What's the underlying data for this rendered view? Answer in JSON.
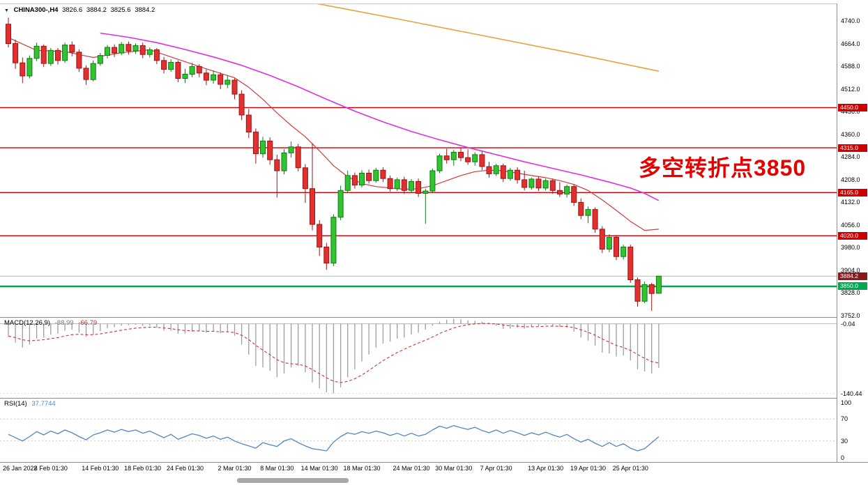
{
  "colors": {
    "up_fill": "#31c431",
    "up_stroke": "#127a12",
    "down_fill": "#e03030",
    "down_stroke": "#a01212",
    "resistance_line": "#cc0000",
    "support_line": "#00a651",
    "current_price_line": "#b8b8b8",
    "ma_red": "#cf3a3a",
    "ma_magenta": "#e12ee1",
    "ma_orange": "#e8a23c",
    "macd_hist": "#9e9e9e",
    "macd_signal": "#cc3333",
    "rsi_line": "#4f87c5",
    "annotation": "#e60000",
    "badge_resistance_bg": "#cc0000",
    "badge_support_bg": "#00a651",
    "badge_current_bg": "#8a1a1a"
  },
  "title": {
    "collapse_icon": "▼",
    "symbol": "CHINA300-,H4",
    "open": "3826.6",
    "high": "3884.2",
    "low": "3825.6",
    "close": "3884.2"
  },
  "annotation": {
    "text": "多空转折点3850"
  },
  "macd_label": {
    "name": "MACD(12,26,9)",
    "hist_value": "-88.99",
    "signal_value": "-66.79"
  },
  "rsi_label": {
    "name": "RSI(14)",
    "value": "37.7744"
  },
  "chart_data": {
    "type": "candlestick",
    "symbol": "CHINA300-",
    "timeframe": "H4",
    "price_panel": {
      "ylim": [
        3747,
        4797
      ],
      "axis_ticks": [
        4740,
        4664,
        4588,
        4512,
        4436,
        4360,
        4284,
        4208,
        4132,
        4056,
        3980,
        3904,
        3828,
        3752
      ],
      "hlines": [
        {
          "value": 4450,
          "label": "4450.0",
          "type": "resistance"
        },
        {
          "value": 4315,
          "label": "4315.0",
          "type": "resistance"
        },
        {
          "value": 4165,
          "label": "4165.0",
          "type": "resistance"
        },
        {
          "value": 4020,
          "label": "4020.0",
          "type": "resistance"
        },
        {
          "value": 3850,
          "label": "3850.0",
          "type": "support"
        }
      ],
      "current_price": {
        "value": 3884.2,
        "label": "3884.2"
      },
      "candles_ohlc": [
        [
          4730,
          4752,
          4652,
          4665
        ],
        [
          4665,
          4678,
          4580,
          4600
        ],
        [
          4600,
          4618,
          4532,
          4556
        ],
        [
          4556,
          4625,
          4548,
          4615
        ],
        [
          4615,
          4668,
          4606,
          4656
        ],
        [
          4656,
          4662,
          4586,
          4598
        ],
        [
          4598,
          4650,
          4590,
          4642
        ],
        [
          4642,
          4650,
          4594,
          4608
        ],
        [
          4608,
          4668,
          4600,
          4660
        ],
        [
          4660,
          4672,
          4622,
          4636
        ],
        [
          4636,
          4645,
          4570,
          4582
        ],
        [
          4582,
          4592,
          4526,
          4544
        ],
        [
          4544,
          4608,
          4538,
          4598
        ],
        [
          4598,
          4634,
          4590,
          4625
        ],
        [
          4625,
          4660,
          4615,
          4652
        ],
        [
          4652,
          4662,
          4620,
          4633
        ],
        [
          4633,
          4670,
          4626,
          4662
        ],
        [
          4662,
          4672,
          4628,
          4640
        ],
        [
          4640,
          4665,
          4630,
          4658
        ],
        [
          4658,
          4668,
          4616,
          4628
        ],
        [
          4628,
          4652,
          4618,
          4644
        ],
        [
          4644,
          4650,
          4596,
          4608
        ],
        [
          4608,
          4620,
          4565,
          4578
        ],
        [
          4578,
          4612,
          4570,
          4602
        ],
        [
          4602,
          4608,
          4535,
          4548
        ],
        [
          4548,
          4580,
          4532,
          4562
        ],
        [
          4562,
          4600,
          4552,
          4588
        ],
        [
          4588,
          4596,
          4552,
          4566
        ],
        [
          4566,
          4578,
          4525,
          4542
        ],
        [
          4542,
          4575,
          4530,
          4560
        ],
        [
          4560,
          4568,
          4512,
          4528
        ],
        [
          4528,
          4558,
          4515,
          4542
        ],
        [
          4542,
          4548,
          4478,
          4495
        ],
        [
          4495,
          4508,
          4408,
          4425
        ],
        [
          4425,
          4445,
          4348,
          4368
        ],
        [
          4368,
          4380,
          4262,
          4295
        ],
        [
          4295,
          4352,
          4282,
          4338
        ],
        [
          4338,
          4350,
          4258,
          4275
        ],
        [
          4275,
          4292,
          4148,
          4238
        ],
        [
          4238,
          4310,
          4226,
          4298
        ],
        [
          4298,
          4336,
          4282,
          4318
        ],
        [
          4318,
          4328,
          4236,
          4248
        ],
        [
          4248,
          4260,
          4130,
          4178
        ],
        [
          4178,
          4330,
          4038,
          4058
        ],
        [
          4058,
          4072,
          3952,
          3982
        ],
        [
          3982,
          3996,
          3906,
          3928
        ],
        [
          3928,
          4092,
          3918,
          4082
        ],
        [
          4082,
          4188,
          4072,
          4172
        ],
        [
          4172,
          4238,
          4162,
          4222
        ],
        [
          4222,
          4232,
          4178,
          4190
        ],
        [
          4190,
          4240,
          4182,
          4230
        ],
        [
          4230,
          4242,
          4195,
          4205
        ],
        [
          4205,
          4248,
          4198,
          4240
        ],
        [
          4240,
          4250,
          4200,
          4212
        ],
        [
          4212,
          4222,
          4168,
          4178
        ],
        [
          4178,
          4215,
          4170,
          4208
        ],
        [
          4208,
          4218,
          4160,
          4172
        ],
        [
          4172,
          4210,
          4165,
          4202
        ],
        [
          4202,
          4212,
          4150,
          4162
        ],
        [
          4162,
          4178,
          4060,
          4170
        ],
        [
          4170,
          4245,
          4162,
          4238
        ],
        [
          4238,
          4295,
          4230,
          4288
        ],
        [
          4288,
          4312,
          4262,
          4275
        ],
        [
          4275,
          4308,
          4255,
          4300
        ],
        [
          4300,
          4316,
          4270,
          4282
        ],
        [
          4282,
          4310,
          4258,
          4268
        ],
        [
          4268,
          4300,
          4255,
          4292
        ],
        [
          4292,
          4302,
          4240,
          4252
        ],
        [
          4252,
          4268,
          4215,
          4228
        ],
        [
          4228,
          4262,
          4220,
          4255
        ],
        [
          4255,
          4262,
          4200,
          4212
        ],
        [
          4212,
          4248,
          4205,
          4240
        ],
        [
          4240,
          4250,
          4195,
          4208
        ],
        [
          4208,
          4238,
          4172,
          4182
        ],
        [
          4182,
          4215,
          4175,
          4210
        ],
        [
          4210,
          4218,
          4170,
          4180
        ],
        [
          4180,
          4212,
          4172,
          4205
        ],
        [
          4205,
          4212,
          4160,
          4172
        ],
        [
          4172,
          4200,
          4150,
          4160
        ],
        [
          4160,
          4192,
          4148,
          4185
        ],
        [
          4185,
          4192,
          4120,
          4132
        ],
        [
          4132,
          4145,
          4075,
          4088
        ],
        [
          4088,
          4118,
          4062,
          4108
        ],
        [
          4108,
          4115,
          4030,
          4042
        ],
        [
          4042,
          4052,
          3962,
          3975
        ],
        [
          3975,
          4025,
          3965,
          4015
        ],
        [
          4015,
          4022,
          3938,
          3950
        ],
        [
          3950,
          3990,
          3940,
          3982
        ],
        [
          3982,
          3990,
          3862,
          3872
        ],
        [
          3872,
          3880,
          3782,
          3800
        ],
        [
          3800,
          3866,
          3794,
          3856
        ],
        [
          3856,
          3862,
          3768,
          3826
        ],
        [
          3826.6,
          3884.2,
          3825.6,
          3884.2
        ]
      ],
      "ma_red_anchors": [
        [
          0,
          4685
        ],
        [
          4,
          4642
        ],
        [
          8,
          4638
        ],
        [
          12,
          4618
        ],
        [
          16,
          4634
        ],
        [
          20,
          4644
        ],
        [
          24,
          4612
        ],
        [
          28,
          4580
        ],
        [
          32,
          4550
        ],
        [
          34,
          4518
        ],
        [
          36,
          4478
        ],
        [
          38,
          4432
        ],
        [
          40,
          4390
        ],
        [
          42,
          4352
        ],
        [
          44,
          4305
        ],
        [
          46,
          4255
        ],
        [
          48,
          4218
        ],
        [
          50,
          4195
        ],
        [
          52,
          4185
        ],
        [
          54,
          4180
        ],
        [
          56,
          4176
        ],
        [
          58,
          4178
        ],
        [
          60,
          4188
        ],
        [
          62,
          4205
        ],
        [
          64,
          4222
        ],
        [
          66,
          4235
        ],
        [
          68,
          4240
        ],
        [
          70,
          4238
        ],
        [
          72,
          4230
        ],
        [
          74,
          4222
        ],
        [
          76,
          4215
        ],
        [
          78,
          4205
        ],
        [
          80,
          4192
        ],
        [
          82,
          4172
        ],
        [
          84,
          4140
        ],
        [
          86,
          4105
        ],
        [
          88,
          4068
        ],
        [
          90,
          4038
        ],
        [
          92,
          4042
        ]
      ],
      "ma_magenta_anchors": [
        [
          13,
          4700
        ],
        [
          17,
          4686
        ],
        [
          21,
          4668
        ],
        [
          25,
          4645
        ],
        [
          29,
          4620
        ],
        [
          33,
          4592
        ],
        [
          37,
          4558
        ],
        [
          41,
          4520
        ],
        [
          45,
          4478
        ],
        [
          49,
          4438
        ],
        [
          53,
          4402
        ],
        [
          57,
          4370
        ],
        [
          61,
          4342
        ],
        [
          65,
          4316
        ],
        [
          69,
          4292
        ],
        [
          73,
          4268
        ],
        [
          77,
          4246
        ],
        [
          81,
          4224
        ],
        [
          85,
          4200
        ],
        [
          88,
          4180
        ],
        [
          90,
          4162
        ],
        [
          92,
          4138
        ]
      ],
      "ma_orange_anchors": [
        [
          43,
          4802
        ],
        [
          55,
          4748
        ],
        [
          67,
          4692
        ],
        [
          79,
          4636
        ],
        [
          92,
          4572
        ]
      ]
    },
    "macd_panel": {
      "title": "MACD(12,26,9)",
      "current_hist": -88.99,
      "current_signal": -66.79,
      "zero_label": "-0.04",
      "min_label": "-140.44",
      "min_label_value": -140.44,
      "values": [
        -25,
        -38,
        -48,
        -42,
        -30,
        -28,
        -22,
        -20,
        -14,
        -12,
        -18,
        -26,
        -22,
        -15,
        -9,
        -7,
        -4,
        -3,
        -2,
        -4,
        -4,
        -8,
        -14,
        -14,
        -20,
        -20,
        -16,
        -15,
        -18,
        -16,
        -19,
        -16,
        -24,
        -42,
        -62,
        -85,
        -88,
        -95,
        -108,
        -100,
        -88,
        -85,
        -98,
        -118,
        -130,
        -138,
        -140.44,
        -128,
        -108,
        -92,
        -76,
        -62,
        -48,
        -40,
        -36,
        -30,
        -28,
        -22,
        -18,
        -12,
        -4,
        4,
        8,
        10,
        9,
        7,
        6,
        4,
        0,
        -4,
        -10,
        -10,
        -8,
        -10,
        -6,
        -5,
        -2,
        -4,
        -6,
        -8,
        -16,
        -28,
        -34,
        -44,
        -58,
        -60,
        -66,
        -64,
        -74,
        -92,
        -96,
        -100,
        -88.99
      ]
    },
    "rsi_panel": {
      "title": "RSI(14)",
      "current": 37.7744,
      "levels": [
        100,
        70,
        30,
        0
      ],
      "values": [
        42,
        36,
        30,
        38,
        47,
        41,
        48,
        43,
        50,
        45,
        38,
        32,
        41,
        45,
        50,
        46,
        51,
        47,
        50,
        44,
        48,
        42,
        36,
        42,
        33,
        38,
        43,
        40,
        35,
        39,
        33,
        37,
        30,
        25,
        21,
        17,
        27,
        23,
        20,
        30,
        34,
        27,
        21,
        16,
        14,
        12,
        28,
        38,
        45,
        42,
        47,
        44,
        48,
        45,
        40,
        44,
        39,
        44,
        39,
        42,
        50,
        57,
        53,
        58,
        54,
        51,
        55,
        49,
        45,
        50,
        44,
        49,
        45,
        40,
        45,
        41,
        46,
        41,
        37,
        42,
        34,
        28,
        33,
        26,
        20,
        27,
        20,
        25,
        17,
        12,
        16,
        27,
        37.77
      ]
    },
    "x_axis": {
      "labels": [
        {
          "i": 0,
          "text": "26 Jan 2022"
        },
        {
          "i": 6,
          "text": "8 Feb 01:30"
        },
        {
          "i": 13,
          "text": "14 Feb 01:30"
        },
        {
          "i": 19,
          "text": "18 Feb 01:30"
        },
        {
          "i": 25,
          "text": "24 Feb 01:30"
        },
        {
          "i": 32,
          "text": "2 Mar 01:30"
        },
        {
          "i": 38,
          "text": "8 Mar 01:30"
        },
        {
          "i": 44,
          "text": "14 Mar 01:30"
        },
        {
          "i": 50,
          "text": "18 Mar 01:30"
        },
        {
          "i": 57,
          "text": "24 Mar 01:30"
        },
        {
          "i": 63,
          "text": "30 Mar 01:30"
        },
        {
          "i": 69,
          "text": "7 Apr 01:30"
        },
        {
          "i": 76,
          "text": "13 Apr 01:30"
        },
        {
          "i": 82,
          "text": "19 Apr 01:30"
        },
        {
          "i": 88,
          "text": "25 Apr 01:30"
        }
      ]
    }
  }
}
